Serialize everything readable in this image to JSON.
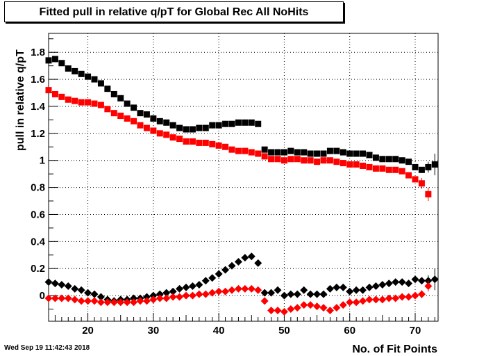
{
  "chart_data": {
    "type": "scatter",
    "title": "Fitted pull in relative q/pT for Global Rec All NoHits",
    "xlabel": "No. of Fit Points",
    "ylabel": "pull in relative q/pT",
    "xlim": [
      14,
      73.5
    ],
    "ylim": [
      -0.19,
      1.94
    ],
    "xticks": [
      20,
      30,
      40,
      50,
      60,
      70
    ],
    "yticks": [
      0,
      0.2,
      0.4,
      0.6,
      0.8,
      1,
      1.2,
      1.4,
      1.6,
      1.8
    ],
    "ytick_labels": [
      "0",
      "0.2",
      "0.4",
      "0.6",
      "0.8",
      "1",
      "1.2",
      "1.4",
      "1.6",
      "1.8"
    ],
    "grid": true,
    "series": [
      {
        "marker": "square",
        "color": "#000000",
        "x": [
          14,
          15,
          16,
          17,
          18,
          19,
          20,
          21,
          22,
          23,
          24,
          25,
          26,
          27,
          28,
          29,
          30,
          31,
          32,
          33,
          34,
          35,
          36,
          37,
          38,
          39,
          40,
          41,
          42,
          43,
          44,
          45,
          46,
          47,
          48,
          49,
          50,
          51,
          52,
          53,
          54,
          55,
          56,
          57,
          58,
          59,
          60,
          61,
          62,
          63,
          64,
          65,
          66,
          67,
          68,
          69,
          70,
          71,
          72,
          73
        ],
        "y": [
          1.74,
          1.75,
          1.72,
          1.68,
          1.66,
          1.64,
          1.62,
          1.6,
          1.57,
          1.53,
          1.49,
          1.46,
          1.42,
          1.39,
          1.35,
          1.34,
          1.31,
          1.29,
          1.28,
          1.26,
          1.24,
          1.23,
          1.23,
          1.24,
          1.24,
          1.26,
          1.26,
          1.27,
          1.27,
          1.28,
          1.28,
          1.28,
          1.27,
          1.08,
          1.06,
          1.06,
          1.06,
          1.07,
          1.06,
          1.06,
          1.05,
          1.05,
          1.05,
          1.07,
          1.07,
          1.06,
          1.05,
          1.05,
          1.05,
          1.04,
          1.02,
          1.01,
          1.01,
          1.01,
          1.0,
          0.99,
          0.95,
          0.93,
          0.95,
          0.97
        ],
        "err": [
          0,
          0,
          0,
          0,
          0,
          0,
          0,
          0,
          0,
          0,
          0,
          0,
          0,
          0,
          0,
          0,
          0,
          0,
          0,
          0,
          0,
          0,
          0,
          0,
          0,
          0,
          0,
          0,
          0,
          0,
          0,
          0,
          0,
          0,
          0,
          0,
          0,
          0,
          0,
          0,
          0,
          0,
          0,
          0,
          0,
          0,
          0,
          0,
          0,
          0,
          0,
          0,
          0,
          0,
          0,
          0,
          0,
          0.02,
          0.04,
          0.08
        ]
      },
      {
        "marker": "square",
        "color": "#ff0000",
        "x": [
          14,
          15,
          16,
          17,
          18,
          19,
          20,
          21,
          22,
          23,
          24,
          25,
          26,
          27,
          28,
          29,
          30,
          31,
          32,
          33,
          34,
          35,
          36,
          37,
          38,
          39,
          40,
          41,
          42,
          43,
          44,
          45,
          46,
          47,
          48,
          49,
          50,
          51,
          52,
          53,
          54,
          55,
          56,
          57,
          58,
          59,
          60,
          61,
          62,
          63,
          64,
          65,
          66,
          67,
          68,
          69,
          70,
          71,
          72
        ],
        "y": [
          1.52,
          1.49,
          1.47,
          1.45,
          1.44,
          1.43,
          1.43,
          1.42,
          1.41,
          1.38,
          1.35,
          1.33,
          1.31,
          1.29,
          1.26,
          1.24,
          1.22,
          1.2,
          1.19,
          1.17,
          1.16,
          1.14,
          1.14,
          1.13,
          1.13,
          1.12,
          1.11,
          1.1,
          1.08,
          1.07,
          1.07,
          1.06,
          1.05,
          1.03,
          1.01,
          1.01,
          1.0,
          1.01,
          1.01,
          1.0,
          1.0,
          0.99,
          1.0,
          1.0,
          0.99,
          0.98,
          0.97,
          0.97,
          0.96,
          0.95,
          0.94,
          0.94,
          0.93,
          0.93,
          0.92,
          0.89,
          0.86,
          0.83,
          0.75
        ],
        "err": [
          0,
          0,
          0,
          0,
          0,
          0,
          0,
          0,
          0,
          0,
          0,
          0,
          0,
          0,
          0,
          0,
          0,
          0,
          0,
          0,
          0,
          0,
          0,
          0,
          0,
          0,
          0,
          0,
          0,
          0,
          0,
          0,
          0,
          0,
          0,
          0,
          0,
          0,
          0,
          0,
          0,
          0,
          0,
          0,
          0,
          0,
          0,
          0,
          0,
          0,
          0,
          0,
          0,
          0,
          0,
          0,
          0.02,
          0.04,
          0.05
        ]
      },
      {
        "marker": "diamond",
        "color": "#000000",
        "x": [
          14,
          15,
          16,
          17,
          18,
          19,
          20,
          21,
          22,
          23,
          24,
          25,
          26,
          27,
          28,
          29,
          30,
          31,
          32,
          33,
          34,
          35,
          36,
          37,
          38,
          39,
          40,
          41,
          42,
          43,
          44,
          45,
          46,
          47,
          48,
          49,
          50,
          51,
          52,
          53,
          54,
          55,
          56,
          57,
          58,
          59,
          60,
          61,
          62,
          63,
          64,
          65,
          66,
          67,
          68,
          69,
          70,
          71,
          72,
          73
        ],
        "y": [
          0.1,
          0.09,
          0.08,
          0.07,
          0.05,
          0.04,
          0.02,
          0.01,
          -0.01,
          -0.03,
          -0.04,
          -0.03,
          -0.03,
          -0.02,
          -0.02,
          -0.01,
          0.0,
          0.01,
          0.02,
          0.03,
          0.05,
          0.06,
          0.07,
          0.08,
          0.11,
          0.13,
          0.16,
          0.19,
          0.22,
          0.25,
          0.28,
          0.29,
          0.24,
          0.02,
          0.02,
          0.04,
          0.0,
          0.01,
          0.01,
          0.04,
          0.01,
          0.01,
          0.01,
          0.05,
          0.06,
          0.06,
          0.03,
          0.04,
          0.04,
          0.06,
          0.07,
          0.08,
          0.09,
          0.1,
          0.1,
          0.09,
          0.12,
          0.11,
          0.11,
          0.12
        ],
        "err": [
          0,
          0,
          0,
          0,
          0,
          0,
          0,
          0,
          0,
          0,
          0,
          0,
          0,
          0,
          0,
          0,
          0,
          0,
          0,
          0,
          0,
          0,
          0,
          0,
          0,
          0,
          0,
          0,
          0,
          0,
          0,
          0,
          0,
          0,
          0,
          0,
          0,
          0,
          0,
          0,
          0,
          0,
          0,
          0,
          0,
          0,
          0,
          0,
          0,
          0,
          0,
          0,
          0,
          0,
          0,
          0,
          0,
          0.02,
          0.04,
          0.08
        ]
      },
      {
        "marker": "diamond",
        "color": "#ff0000",
        "x": [
          14,
          15,
          16,
          17,
          18,
          19,
          20,
          21,
          22,
          23,
          24,
          25,
          26,
          27,
          28,
          29,
          30,
          31,
          32,
          33,
          34,
          35,
          36,
          37,
          38,
          39,
          40,
          41,
          42,
          43,
          44,
          45,
          46,
          47,
          48,
          49,
          50,
          51,
          52,
          53,
          54,
          55,
          56,
          57,
          58,
          59,
          60,
          61,
          62,
          63,
          64,
          65,
          66,
          67,
          68,
          69,
          70,
          71,
          72
        ],
        "y": [
          -0.02,
          -0.02,
          -0.02,
          -0.02,
          -0.03,
          -0.04,
          -0.04,
          -0.04,
          -0.05,
          -0.05,
          -0.05,
          -0.05,
          -0.05,
          -0.05,
          -0.04,
          -0.04,
          -0.03,
          -0.02,
          -0.02,
          -0.01,
          -0.01,
          0.0,
          0.0,
          0.01,
          0.01,
          0.02,
          0.03,
          0.03,
          0.04,
          0.05,
          0.05,
          0.05,
          0.04,
          -0.04,
          -0.11,
          -0.11,
          -0.12,
          -0.1,
          -0.09,
          -0.07,
          -0.07,
          -0.08,
          -0.09,
          -0.11,
          -0.09,
          -0.07,
          -0.05,
          -0.05,
          -0.04,
          -0.03,
          -0.03,
          -0.03,
          -0.02,
          -0.02,
          -0.01,
          -0.01,
          0.0,
          0.01,
          0.07
        ],
        "err": [
          0,
          0,
          0,
          0,
          0,
          0,
          0,
          0,
          0,
          0,
          0,
          0,
          0,
          0,
          0,
          0,
          0,
          0,
          0,
          0,
          0,
          0,
          0,
          0,
          0,
          0,
          0,
          0,
          0,
          0,
          0,
          0,
          0,
          0,
          0,
          0,
          0,
          0,
          0,
          0,
          0,
          0,
          0,
          0,
          0,
          0,
          0,
          0,
          0,
          0,
          0,
          0,
          0,
          0,
          0,
          0,
          0.02,
          0.03,
          0.04
        ]
      }
    ]
  },
  "timestamp": "Wed Sep 19 11:42:43 2018"
}
